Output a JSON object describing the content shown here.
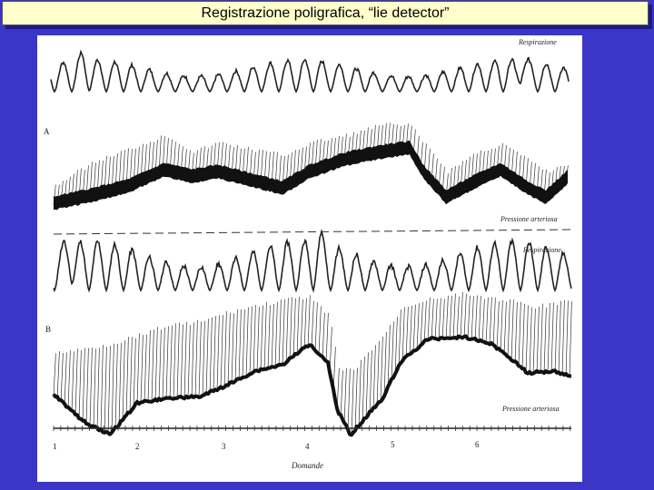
{
  "slide": {
    "title": "Registrazione poligrafica, “lie detector”"
  },
  "figure": {
    "panels": [
      {
        "letter": "A",
        "respiration_label": "Respirazione",
        "pressure_label": "Pressione arteriosa"
      },
      {
        "letter": "B",
        "respiration_label": "Respirazione",
        "pressure_label": "Pressione arteriosa"
      }
    ],
    "axis": {
      "label": "Domande",
      "ticks": [
        "1",
        "2",
        "3",
        "4",
        "5",
        "6"
      ]
    }
  }
}
